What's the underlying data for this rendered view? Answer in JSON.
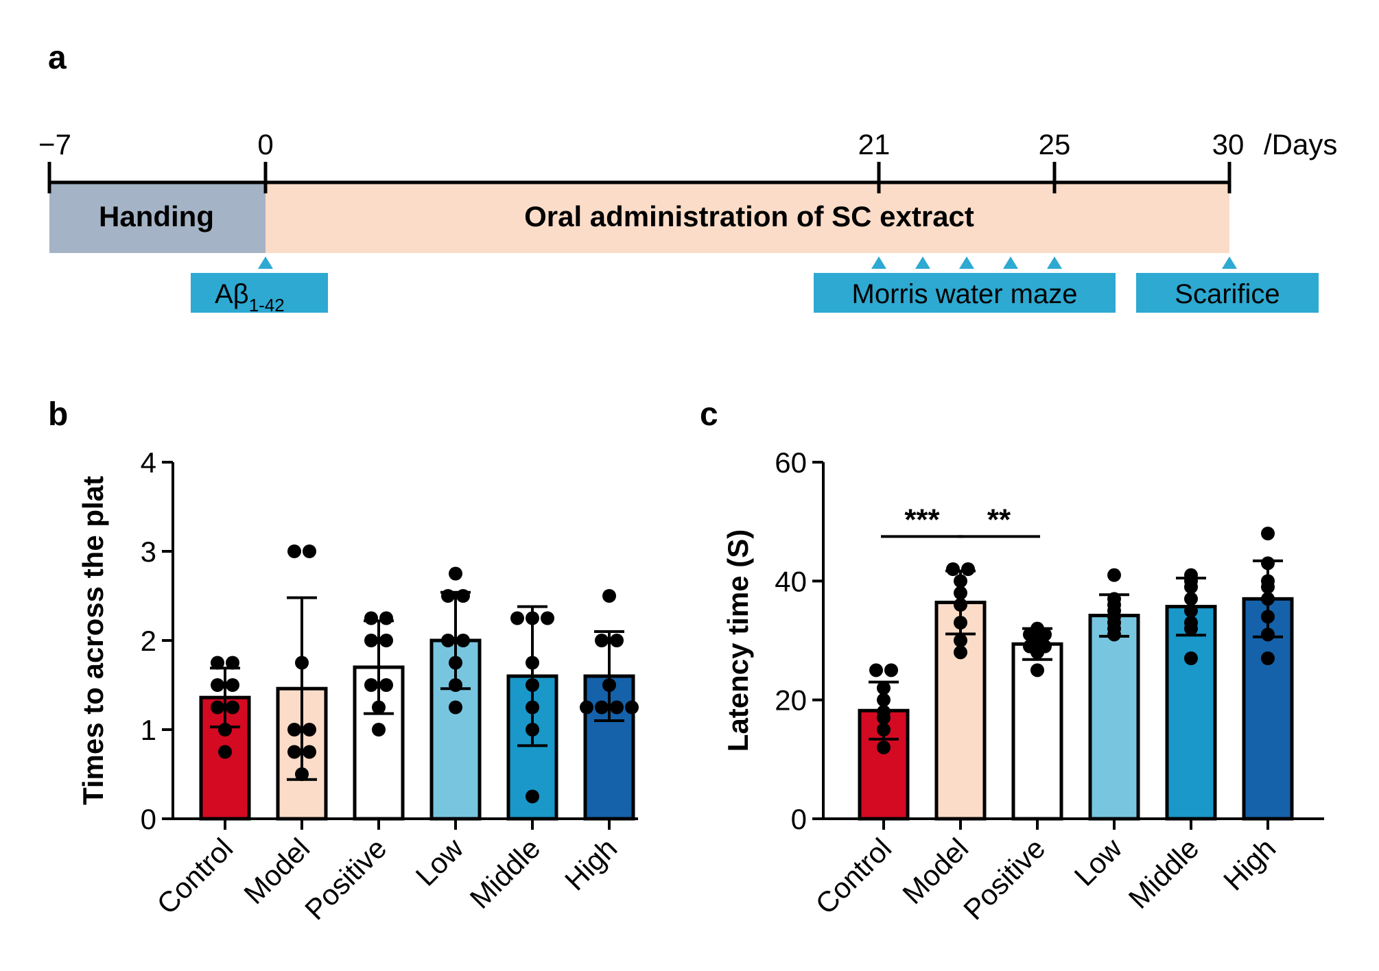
{
  "colors": {
    "control": "#d40a22",
    "model": "#fbdcc8",
    "positive": "#ffffff",
    "low": "#78c5e0",
    "middle": "#1a98c9",
    "high": "#1562aa",
    "handing": "#a5b3c6",
    "oral": "#fbdcc8",
    "marker": "#2ea9d1"
  },
  "panel_a": {
    "label": "a",
    "tick_labels": [
      "−7",
      "0",
      "21",
      "25",
      "30"
    ],
    "unit": "/Days",
    "handing_label": "Handing",
    "oral_label": "Oral administration of SC extract",
    "abeta_main": "Aβ",
    "abeta_sub": "1-42",
    "mwm_label": "Morris water maze",
    "sacrifice_label": "Scarifice"
  },
  "chart_data": [
    {
      "panel": "b",
      "type": "bar",
      "ylabel": "Times to across the plat",
      "xlabel": "",
      "ylim": [
        0,
        4
      ],
      "yticks": [
        0,
        1,
        2,
        3,
        4
      ],
      "categories": [
        "Control",
        "Model",
        "Positive",
        "Low",
        "Middle",
        "High"
      ],
      "values": [
        1.36,
        1.46,
        1.7,
        2.0,
        1.6,
        1.6
      ],
      "errors": [
        0.33,
        1.02,
        0.52,
        0.54,
        0.78,
        0.5
      ],
      "points": [
        [
          1.75,
          1.75,
          1.5,
          1.5,
          1.25,
          1.25,
          1.0,
          0.75
        ],
        [
          3.0,
          3.0,
          1.75,
          1.0,
          1.0,
          0.75,
          0.75,
          0.5
        ],
        [
          2.25,
          2.25,
          2.0,
          2.0,
          1.5,
          1.5,
          1.25,
          1.0
        ],
        [
          2.75,
          2.5,
          2.5,
          2.0,
          2.0,
          1.75,
          1.5,
          1.25
        ],
        [
          2.25,
          2.25,
          2.25,
          1.75,
          1.5,
          1.25,
          1.0,
          0.25
        ],
        [
          2.5,
          2.0,
          2.0,
          1.5,
          1.25,
          1.25,
          1.25,
          1.25
        ]
      ],
      "significance": []
    },
    {
      "panel": "c",
      "type": "bar",
      "ylabel": "Latency time (S)",
      "xlabel": "",
      "ylim": [
        0,
        60
      ],
      "yticks": [
        0,
        20,
        40,
        60
      ],
      "categories": [
        "Control",
        "Model",
        "Positive",
        "Low",
        "Middle",
        "High"
      ],
      "values": [
        18.2,
        36.4,
        29.4,
        34.2,
        35.7,
        37.0
      ],
      "errors": [
        4.8,
        5.3,
        2.6,
        3.5,
        4.8,
        6.4
      ],
      "points": [
        [
          25,
          25,
          22,
          20,
          18,
          17,
          15,
          12
        ],
        [
          42,
          42,
          40,
          38,
          36,
          33,
          30,
          28
        ],
        [
          32,
          31,
          31,
          30,
          29,
          29,
          28,
          25
        ],
        [
          41,
          37,
          36,
          35,
          34,
          33,
          32,
          31
        ],
        [
          41,
          40,
          39,
          37,
          35,
          33,
          32,
          27
        ],
        [
          48,
          43,
          40,
          39,
          37,
          34,
          31,
          27
        ]
      ],
      "significance": [
        {
          "from": 0,
          "to": 1,
          "label": "***",
          "y": 47.5
        },
        {
          "from": 1,
          "to": 2,
          "label": "**",
          "y": 47.5
        }
      ]
    }
  ]
}
